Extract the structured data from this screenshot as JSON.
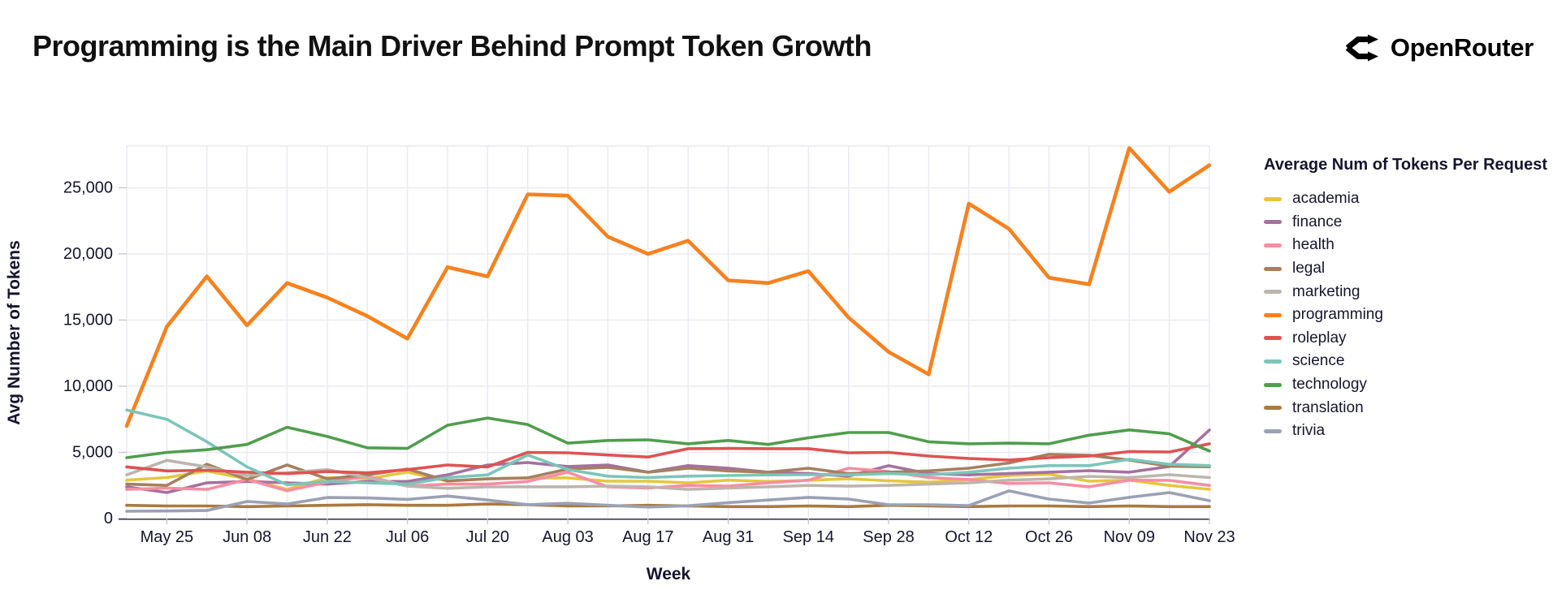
{
  "header": {
    "title": "Programming is the Main Driver Behind Prompt Token Growth",
    "brand": "OpenRouter"
  },
  "chart_data": {
    "type": "line",
    "xlabel": "Week",
    "ylabel": "Avg Number of Tokens",
    "legend_title": "Average Num of Tokens Per Request",
    "legend_position": "right",
    "grid": true,
    "ylim": [
      0,
      28150
    ],
    "y_ticks": [
      0,
      5000,
      10000,
      15000,
      20000,
      25000
    ],
    "x": [
      "May 18",
      "May 25",
      "Jun 01",
      "Jun 08",
      "Jun 15",
      "Jun 22",
      "Jun 29",
      "Jul 06",
      "Jul 13",
      "Jul 20",
      "Jul 27",
      "Aug 03",
      "Aug 10",
      "Aug 17",
      "Aug 24",
      "Aug 31",
      "Sep 07",
      "Sep 14",
      "Sep 21",
      "Sep 28",
      "Oct 05",
      "Oct 12",
      "Oct 19",
      "Oct 26",
      "Nov 02",
      "Nov 09",
      "Nov 16",
      "Nov 23"
    ],
    "x_tick_labels": [
      "May 25",
      "Jun 08",
      "Jun 22",
      "Jul 06",
      "Jul 20",
      "Aug 03",
      "Aug 17",
      "Aug 31",
      "Sep 14",
      "Sep 28",
      "Oct 12",
      "Oct 26",
      "Nov 09",
      "Nov 23"
    ],
    "series": [
      {
        "name": "academia",
        "color": "#e5c63f",
        "values": [
          2900,
          3100,
          3600,
          3000,
          2200,
          3100,
          3000,
          3500,
          2820,
          3000,
          3070,
          3070,
          2820,
          2820,
          2700,
          2900,
          2800,
          2880,
          3010,
          2850,
          2750,
          2940,
          3250,
          3350,
          2820,
          2900,
          2500,
          2210
        ]
      },
      {
        "name": "finance",
        "color": "#a5719f",
        "values": [
          2400,
          1960,
          2700,
          2800,
          2700,
          2600,
          2800,
          2800,
          3300,
          4050,
          4230,
          3930,
          4050,
          3500,
          4000,
          3800,
          3500,
          3400,
          3200,
          3990,
          3400,
          3300,
          3400,
          3500,
          3620,
          3500,
          3930,
          6690
        ]
      },
      {
        "name": "health",
        "color": "#f78da3",
        "values": [
          2200,
          2300,
          2200,
          2950,
          2100,
          2750,
          3200,
          2450,
          2600,
          2600,
          2800,
          3500,
          2400,
          2300,
          2500,
          2450,
          2700,
          2900,
          3800,
          3550,
          3100,
          2950,
          2650,
          2700,
          2400,
          2900,
          2880,
          2500
        ]
      },
      {
        "name": "legal",
        "color": "#a5805f",
        "values": [
          2600,
          2500,
          4100,
          2950,
          4050,
          3000,
          3300,
          3740,
          2850,
          3000,
          3070,
          3740,
          3870,
          3500,
          3800,
          3600,
          3500,
          3800,
          3400,
          3500,
          3600,
          3800,
          4200,
          4850,
          4780,
          4420,
          3950,
          3910
        ]
      },
      {
        "name": "marketing",
        "color": "#bdb5ad",
        "values": [
          3300,
          4400,
          3900,
          3250,
          3450,
          3700,
          3100,
          2450,
          2280,
          2390,
          2400,
          2400,
          2450,
          2400,
          2200,
          2300,
          2400,
          2500,
          2450,
          2500,
          2600,
          2700,
          2900,
          3000,
          3190,
          3090,
          3310,
          3100
        ]
      },
      {
        "name": "programming",
        "color": "#f5821f",
        "values": [
          7000,
          14500,
          18300,
          14600,
          17800,
          16700,
          15300,
          13600,
          19000,
          18300,
          24500,
          24400,
          21300,
          20000,
          21000,
          18000,
          17800,
          18700,
          15200,
          12600,
          10900,
          23800,
          21900,
          18200,
          17700,
          28000,
          24700,
          26700
        ]
      },
      {
        "name": "roleplay",
        "color": "#e05252",
        "values": [
          3900,
          3600,
          3650,
          3500,
          3400,
          3550,
          3450,
          3700,
          4050,
          3900,
          5000,
          4970,
          4800,
          4650,
          5280,
          5300,
          5280,
          5280,
          4970,
          5000,
          4720,
          4540,
          4420,
          4600,
          4720,
          5060,
          5030,
          5650
        ]
      },
      {
        "name": "science",
        "color": "#7cc5bb",
        "values": [
          8200,
          7500,
          5800,
          3900,
          2550,
          2800,
          2700,
          2600,
          3100,
          3300,
          4800,
          3700,
          3200,
          3100,
          3200,
          3250,
          3300,
          3310,
          3300,
          3400,
          3300,
          3500,
          3800,
          4000,
          4000,
          4480,
          4100,
          4000
        ]
      },
      {
        "name": "technology",
        "color": "#4f9e4c",
        "values": [
          4600,
          5000,
          5200,
          5600,
          6900,
          6200,
          5350,
          5300,
          7050,
          7600,
          7100,
          5700,
          5900,
          5950,
          5650,
          5900,
          5600,
          6100,
          6500,
          6500,
          5800,
          5650,
          5700,
          5650,
          6300,
          6700,
          6400,
          5100
        ]
      },
      {
        "name": "translation",
        "color": "#aa7a3e",
        "values": [
          1000,
          950,
          950,
          900,
          950,
          1000,
          1050,
          1000,
          1000,
          1100,
          1050,
          950,
          950,
          1000,
          950,
          900,
          900,
          950,
          900,
          1000,
          950,
          900,
          950,
          950,
          900,
          950,
          900,
          900
        ]
      },
      {
        "name": "trivia",
        "color": "#9ba1b5",
        "values": [
          550,
          570,
          610,
          1290,
          1100,
          1590,
          1560,
          1450,
          1700,
          1400,
          1050,
          1150,
          1000,
          870,
          960,
          1200,
          1400,
          1600,
          1470,
          1040,
          1040,
          980,
          2090,
          1470,
          1170,
          1600,
          1960,
          1350
        ]
      }
    ]
  }
}
